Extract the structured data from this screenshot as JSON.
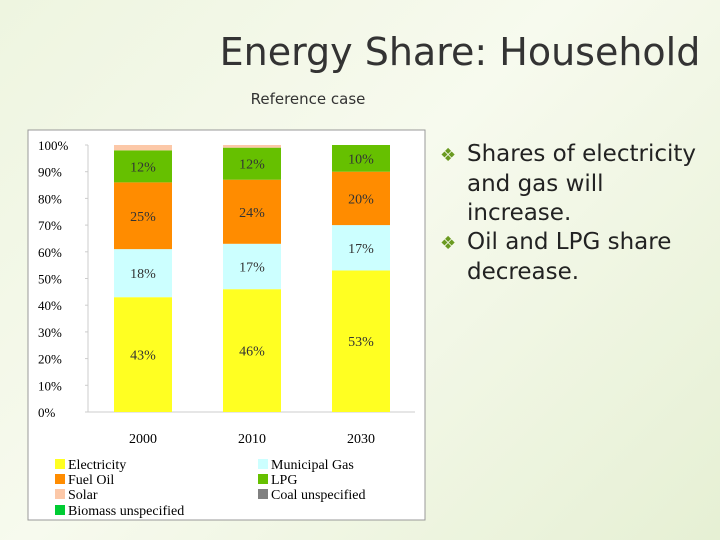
{
  "title": "Energy Share: Household",
  "subtitle": "Reference case",
  "bullets": [
    "Shares of electricity and gas will increase.",
    "Oil and LPG share decrease."
  ],
  "chart_data": {
    "type": "stacked_bar",
    "categories": [
      "2000",
      "2010",
      "2030"
    ],
    "ylim": [
      0,
      100
    ],
    "yticks": [
      {
        "value": 0,
        "label": "0%"
      },
      {
        "value": 10,
        "label": "10%"
      },
      {
        "value": 20,
        "label": "20%"
      },
      {
        "value": 30,
        "label": "30%"
      },
      {
        "value": 40,
        "label": "40%"
      },
      {
        "value": 50,
        "label": "50%"
      },
      {
        "value": 60,
        "label": "60%"
      },
      {
        "value": 70,
        "label": "70%"
      },
      {
        "value": 80,
        "label": "80%"
      },
      {
        "value": 90,
        "label": "90%"
      },
      {
        "value": 100,
        "label": "100%"
      }
    ],
    "grid": false,
    "series": [
      {
        "name": "Electricity",
        "color": "#ffff22",
        "values": [
          43,
          46,
          53
        ],
        "value_labels": [
          "43%",
          "46%",
          "53%"
        ]
      },
      {
        "name": "Municipal Gas",
        "color": "#ccffff",
        "values": [
          18,
          17,
          17
        ],
        "value_labels": [
          "18%",
          "17%",
          "17%"
        ]
      },
      {
        "name": "Fuel Oil",
        "color": "#ff8c00",
        "values": [
          25,
          24,
          20
        ],
        "value_labels": [
          "25%",
          "24%",
          "20%"
        ]
      },
      {
        "name": "LPG",
        "color": "#66c000",
        "values": [
          12,
          12,
          10
        ],
        "value_labels": [
          "12%",
          "12%",
          "10%"
        ]
      },
      {
        "name": "Solar",
        "color": "#fcc8a8",
        "values": [
          2,
          1,
          0
        ]
      },
      {
        "name": "Biomass unspecified",
        "color": "#00cc33",
        "values": [
          0,
          0,
          0
        ]
      },
      {
        "name": "Coal unspecified",
        "color": "#808080",
        "values": [
          0,
          0,
          0
        ]
      }
    ]
  }
}
